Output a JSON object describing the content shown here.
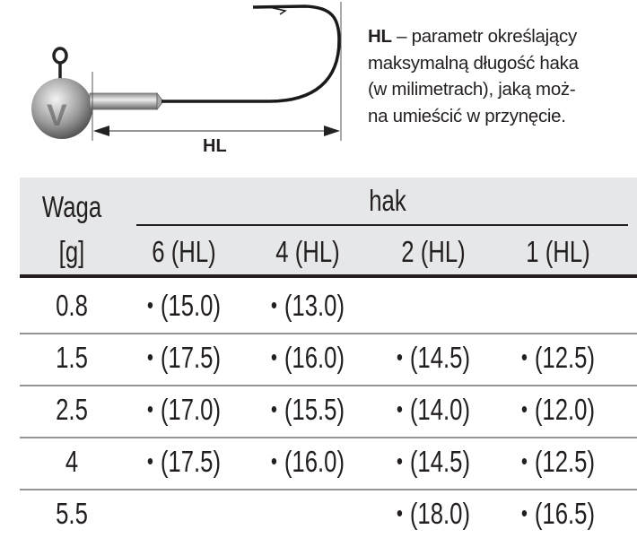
{
  "illustration": {
    "dimension_label": "HL",
    "logo_letter": "V"
  },
  "description": {
    "term": "HL",
    "lines": [
      " – parametr określający",
      "maksymalną długość haka",
      "(w milimetrach), jaką moż-",
      "na umieścić w przynęcie."
    ]
  },
  "table": {
    "weight_header": "Waga",
    "weight_unit": "[g]",
    "group_header": "hak",
    "columns": [
      "6 (HL)",
      "4 (HL)",
      "2 (HL)",
      "1 (HL)"
    ],
    "bullet": "•",
    "rows": [
      {
        "weight": "0.8",
        "cells": [
          "(15.0)",
          "(13.0)",
          "",
          ""
        ]
      },
      {
        "weight": "1.5",
        "cells": [
          "(17.5)",
          "(16.0)",
          "(14.5)",
          "(12.5)"
        ]
      },
      {
        "weight": "2.5",
        "cells": [
          "(17.0)",
          "(15.5)",
          "(14.0)",
          "(12.0)"
        ]
      },
      {
        "weight": "4",
        "cells": [
          "(17.5)",
          "(16.0)",
          "(14.5)",
          "(12.5)"
        ]
      },
      {
        "weight": "5.5",
        "cells": [
          "",
          "",
          "(18.0)",
          "(16.5)"
        ]
      }
    ]
  }
}
